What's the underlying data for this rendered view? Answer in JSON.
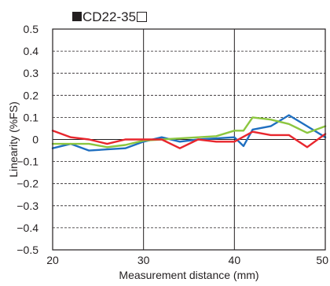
{
  "chart_data": {
    "type": "line",
    "title": "CD22-35",
    "title_markers": {
      "prefix": "filled-square",
      "suffix": "open-square"
    },
    "xlabel": "Measurement distance (mm)",
    "ylabel": "Linearity (%FS)",
    "xlim": [
      20,
      50
    ],
    "ylim": [
      -0.5,
      0.5
    ],
    "x_ticks": [
      20,
      30,
      40,
      50
    ],
    "x_tick_labels": [
      "20",
      "30",
      "40",
      "50"
    ],
    "y_ticks": [
      0.5,
      0.4,
      0.3,
      0.2,
      0.1,
      0,
      -0.1,
      -0.2,
      -0.3,
      -0.4,
      -0.5
    ],
    "y_tick_labels": [
      "0.5",
      "0.4",
      "0.3",
      "0.2",
      "0.1",
      "0",
      "−0.1",
      "−0.2",
      "−0.3",
      "−0.4",
      "−0.5"
    ],
    "grid": {
      "vertical": "solid",
      "horizontal": "dashed"
    },
    "series": [
      {
        "color": "#1f6fc0",
        "x": [
          20,
          22,
          24,
          26,
          28,
          30,
          32,
          34,
          36,
          38,
          40,
          41,
          42,
          44,
          46,
          48,
          50
        ],
        "y": [
          -0.04,
          -0.02,
          -0.05,
          -0.045,
          -0.04,
          -0.01,
          0.01,
          -0.01,
          0.0,
          0.005,
          0.01,
          -0.03,
          0.045,
          0.06,
          0.11,
          0.06,
          0.01
        ]
      },
      {
        "color": "#8cc63f",
        "x": [
          20,
          22,
          24,
          26,
          28,
          30,
          32,
          34,
          36,
          38,
          40,
          41,
          42,
          44,
          46,
          48,
          50
        ],
        "y": [
          -0.02,
          -0.02,
          -0.02,
          -0.035,
          -0.025,
          -0.005,
          0.0,
          0.005,
          0.01,
          0.015,
          0.04,
          0.04,
          0.1,
          0.09,
          0.07,
          0.03,
          0.06
        ]
      },
      {
        "color": "#e8262d",
        "x": [
          20,
          22,
          24,
          26,
          28,
          30,
          32,
          34,
          36,
          38,
          40,
          42,
          44,
          46,
          48,
          50
        ],
        "y": [
          0.04,
          0.01,
          0.0,
          -0.02,
          0.0,
          0.0,
          0.0,
          -0.04,
          0.0,
          -0.01,
          -0.01,
          0.035,
          0.02,
          0.02,
          -0.035,
          0.025
        ]
      }
    ]
  }
}
